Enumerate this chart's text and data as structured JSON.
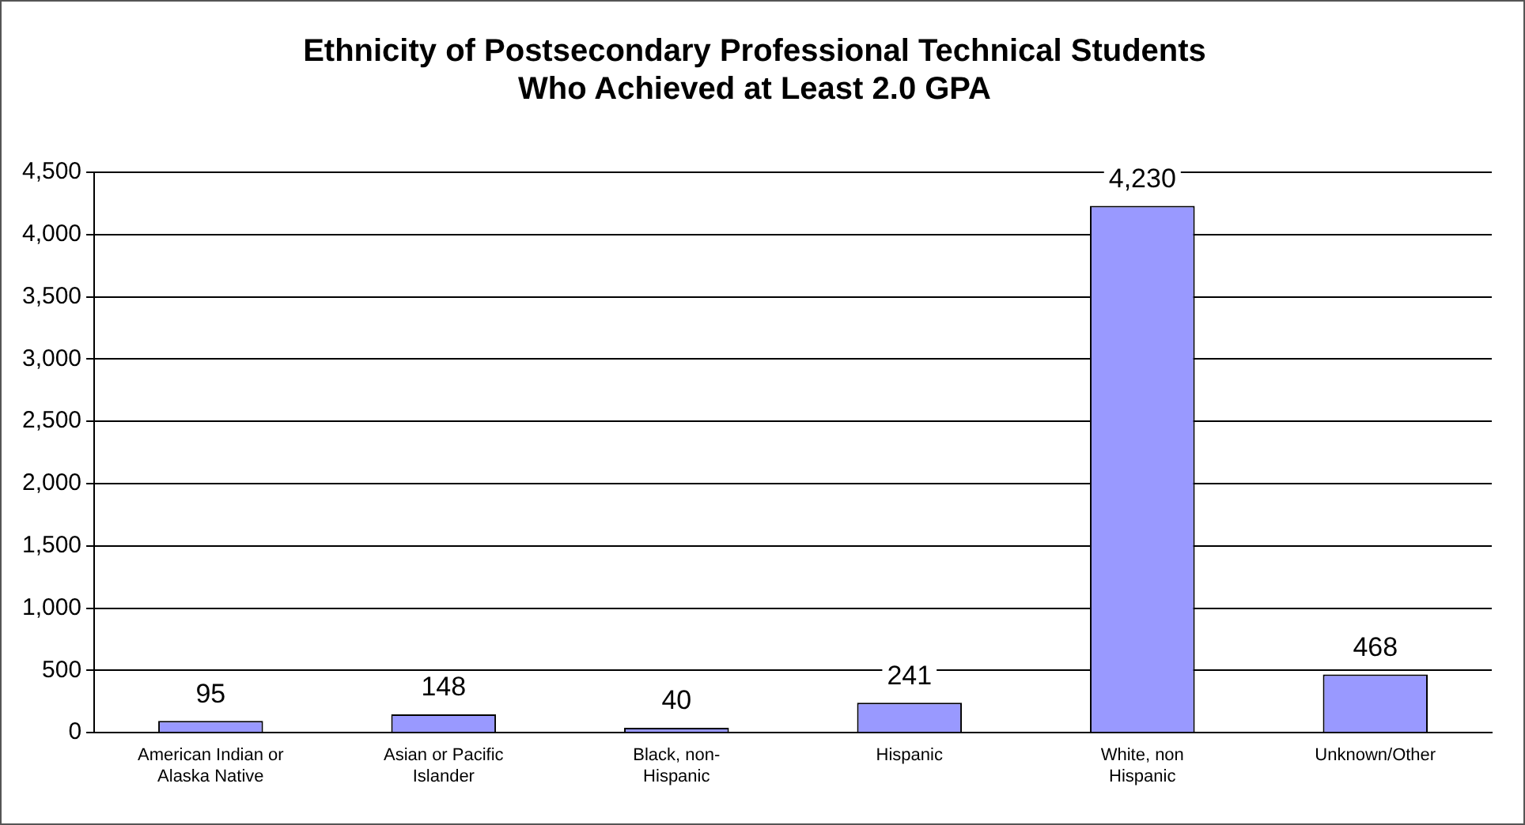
{
  "chart_data": {
    "type": "bar",
    "title": "Ethnicity of Postsecondary Professional Technical Students Who Achieved at Least 2.0 GPA",
    "categories": [
      "American Indian or Alaska Native",
      "Asian or Pacific Islander",
      "Black, non-Hispanic",
      "Hispanic",
      "White, non Hispanic",
      "Unknown/Other"
    ],
    "values": [
      95,
      148,
      40,
      241,
      4230,
      468
    ],
    "color": "#9999ff",
    "ylim": [
      0,
      4500
    ],
    "yticks": [
      0,
      500,
      {
        "value": 1000,
        "label": "1,000"
      },
      {
        "value": 1500,
        "label": "1,500"
      },
      {
        "value": 2000,
        "label": "2,000"
      },
      {
        "value": 2500,
        "label": "2,500"
      },
      {
        "value": 3000,
        "label": "3,000"
      },
      {
        "value": 3500,
        "label": "3,500"
      },
      {
        "value": 4000,
        "label": "4,000"
      },
      {
        "value": 4500,
        "label": "4,500"
      }
    ],
    "value_labels": [
      "95",
      "148",
      "40",
      "241",
      "4,230",
      "468"
    ],
    "grid": "y"
  }
}
